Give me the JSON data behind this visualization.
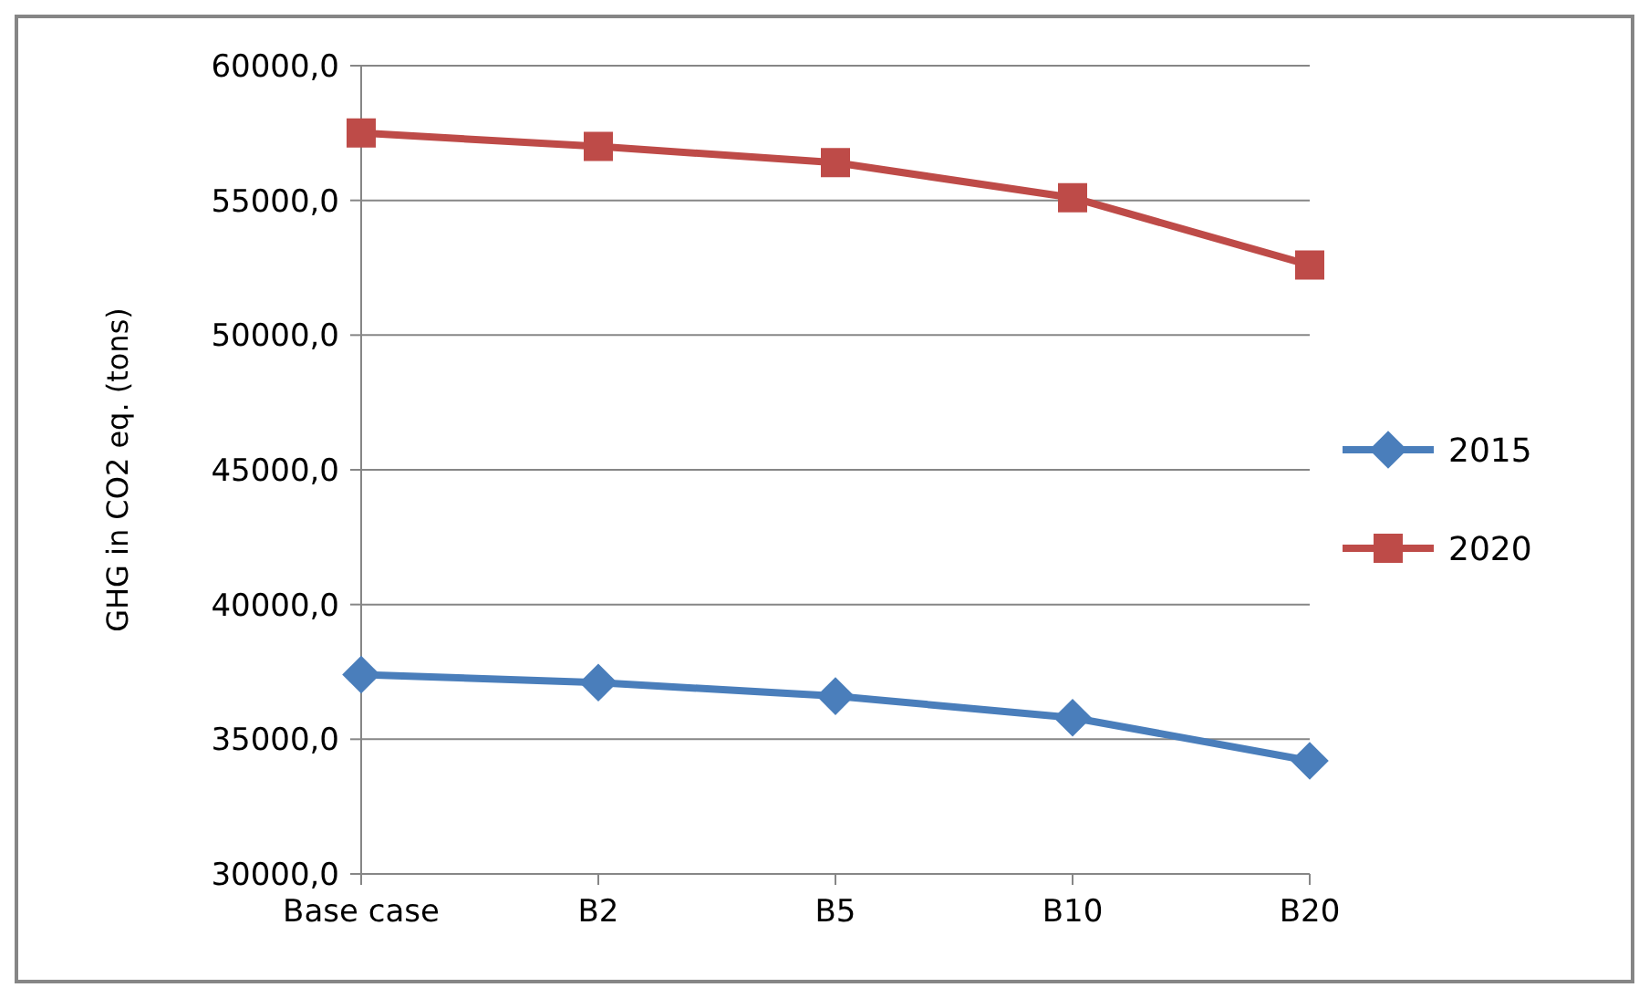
{
  "chart_data": {
    "type": "line",
    "ylabel": "GHG in CO2 eq. (tons)",
    "categories": [
      "Base case",
      "B2",
      "B5",
      "B10",
      "B20"
    ],
    "series": [
      {
        "name": "2015",
        "color": "#4a7ebb",
        "values": [
          37400,
          37100,
          36600,
          35800,
          34200
        ],
        "marker": "diamond"
      },
      {
        "name": "2020",
        "color": "#be4b48",
        "values": [
          57500,
          57000,
          56400,
          55100,
          52600
        ],
        "marker": "square"
      }
    ],
    "ylim": [
      30000,
      60000
    ],
    "yticks": [
      {
        "value": 30000,
        "label": "30000,0"
      },
      {
        "value": 35000,
        "label": "35000,0"
      },
      {
        "value": 40000,
        "label": "40000,0"
      },
      {
        "value": 45000,
        "label": "45000,0"
      },
      {
        "value": 50000,
        "label": "50000,0"
      },
      {
        "value": 55000,
        "label": "55000,0"
      },
      {
        "value": 60000,
        "label": "60000,0"
      }
    ],
    "grid": "y",
    "legend": "right",
    "line_style": "solid"
  }
}
